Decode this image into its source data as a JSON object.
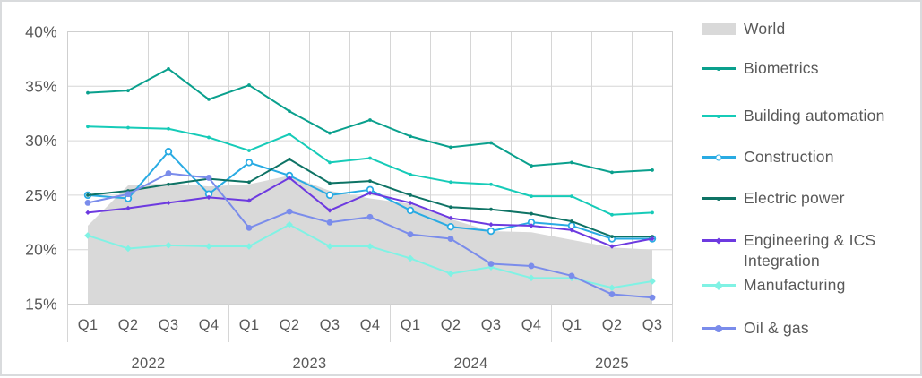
{
  "window": {
    "background": "#ffffff",
    "border_color": "#d9dbdd"
  },
  "chart_data": {
    "type": "area",
    "subtype": "area (World) + 7 line series, quarterly percentages",
    "title": "",
    "xlabel": "",
    "ylabel": "",
    "ylim": [
      15,
      40
    ],
    "grid": true,
    "legend_position": "right",
    "colors": {
      "grid": "#d6d6d6",
      "plot_border": "#cfcfcf",
      "axis_text": "#595959"
    },
    "y_ticks": [
      {
        "label": "40%",
        "value": 40
      },
      {
        "label": "35%",
        "value": 35
      },
      {
        "label": "30%",
        "value": 30
      },
      {
        "label": "25%",
        "value": 25
      },
      {
        "label": "20%",
        "value": 20
      },
      {
        "label": "15%",
        "value": 15
      }
    ],
    "quarters": [
      "Q1",
      "Q2",
      "Q3",
      "Q4",
      "Q1",
      "Q2",
      "Q3",
      "Q4",
      "Q1",
      "Q2",
      "Q3",
      "Q4",
      "Q1",
      "Q2",
      "Q3"
    ],
    "year_groups": [
      {
        "label": "2022",
        "span": 4
      },
      {
        "label": "2023",
        "span": 4
      },
      {
        "label": "2024",
        "span": 4
      },
      {
        "label": "2025",
        "span": 3
      }
    ],
    "series": [
      {
        "name": "World",
        "type": "area",
        "color": "#d9d9d9",
        "marker": "none",
        "values": [
          22.2,
          25.9,
          26.1,
          25.8,
          26.0,
          26.8,
          25.4,
          24.7,
          24.2,
          22.8,
          21.7,
          21.6,
          20.9,
          20.2,
          20.0
        ]
      },
      {
        "name": "Biometrics",
        "type": "line",
        "color": "#0aa08d",
        "marker": "dot",
        "values": [
          34.4,
          34.6,
          36.6,
          33.8,
          35.1,
          32.7,
          30.7,
          31.9,
          30.4,
          29.4,
          29.8,
          27.7,
          28.0,
          27.1,
          27.3
        ]
      },
      {
        "name": "Building automation",
        "type": "line",
        "color": "#16cbb8",
        "marker": "dot",
        "values": [
          31.3,
          31.2,
          31.1,
          30.3,
          29.1,
          30.6,
          28.0,
          28.4,
          26.9,
          26.2,
          26.0,
          24.9,
          24.9,
          23.2,
          23.4
        ]
      },
      {
        "name": "Construction",
        "type": "line",
        "color": "#29abe3",
        "marker": "circle-open",
        "values": [
          25.0,
          24.7,
          29.0,
          25.1,
          28.0,
          26.8,
          25.0,
          25.5,
          23.6,
          22.1,
          21.7,
          22.5,
          22.2,
          21.0,
          21.0
        ]
      },
      {
        "name": "Electric power",
        "type": "line",
        "color": "#0e7365",
        "marker": "dot",
        "values": [
          25.0,
          25.4,
          26.0,
          26.5,
          26.2,
          28.3,
          26.1,
          26.3,
          25.0,
          23.9,
          23.7,
          23.3,
          22.6,
          21.2,
          21.2
        ]
      },
      {
        "name": "Engineering & ICS Integration",
        "type": "line",
        "color": "#6d3ae0",
        "marker": "diamond-small",
        "values": [
          23.4,
          23.8,
          24.3,
          24.8,
          24.5,
          26.6,
          23.6,
          25.2,
          24.3,
          22.9,
          22.3,
          22.2,
          21.8,
          20.3,
          21.0
        ]
      },
      {
        "name": "Manufacturing",
        "type": "line",
        "color": "#80f2e4",
        "marker": "diamond",
        "values": [
          21.3,
          20.1,
          20.4,
          20.3,
          20.3,
          22.3,
          20.3,
          20.3,
          19.2,
          17.8,
          18.4,
          17.4,
          17.4,
          16.5,
          17.1
        ]
      },
      {
        "name": "Oil & gas",
        "type": "line",
        "color": "#7a8ceb",
        "marker": "circle",
        "values": [
          24.3,
          25.1,
          27.0,
          26.6,
          22.0,
          23.5,
          22.5,
          23.0,
          21.4,
          21.0,
          18.7,
          18.5,
          17.6,
          15.9,
          15.6
        ]
      }
    ]
  }
}
